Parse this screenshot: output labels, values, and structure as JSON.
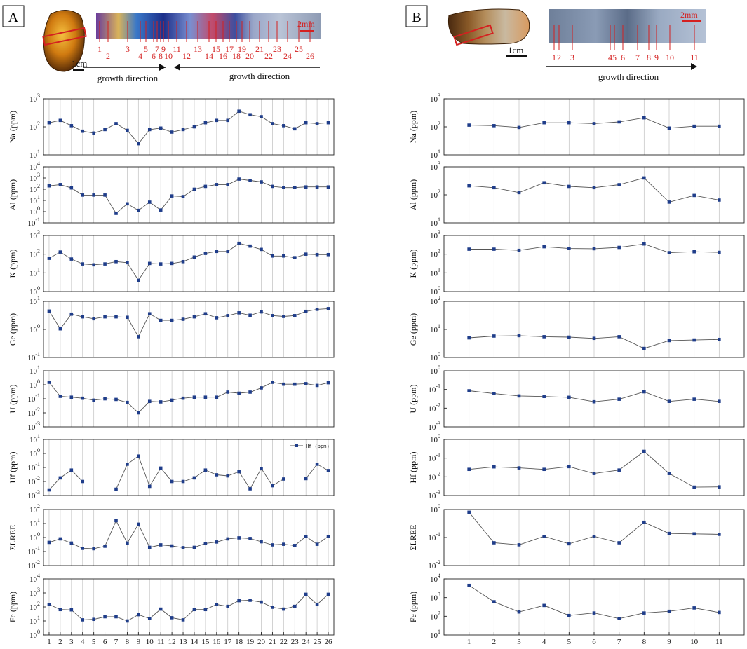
{
  "panels": [
    {
      "label": "A",
      "scale_labels": {
        "photo": "1cm",
        "strip": "2mm"
      },
      "directions": [
        {
          "label": "growth direction",
          "arrow": "right"
        },
        {
          "label": "growth direction",
          "arrow": "left"
        }
      ],
      "strip_numbers": [
        "1",
        "2",
        "3",
        "4",
        "5",
        "6",
        "7",
        "8",
        "9",
        "10",
        "11",
        "12",
        "13",
        "14",
        "15",
        "16",
        "17",
        "18",
        "19",
        "20",
        "21",
        "22",
        "23",
        "24",
        "25",
        "26"
      ]
    },
    {
      "label": "B",
      "scale_labels": {
        "photo": "1cm",
        "strip": "2mm"
      },
      "directions": [
        {
          "label": "growth direction",
          "arrow": "right"
        }
      ],
      "strip_numbers": [
        "1",
        "2",
        "3",
        "4",
        "5",
        "6",
        "7",
        "8",
        "9",
        "10",
        "11"
      ]
    }
  ],
  "colors": {
    "series": "#1f3d8a",
    "line": "#555555",
    "grid": "#c8c8c8",
    "strip_marks": "#d42020"
  },
  "chart_data": [
    {
      "panel": "A",
      "type": "line",
      "yscale": "log",
      "x": [
        1,
        2,
        3,
        4,
        5,
        6,
        7,
        8,
        9,
        10,
        11,
        12,
        13,
        14,
        15,
        16,
        17,
        18,
        19,
        20,
        21,
        22,
        23,
        24,
        25,
        26
      ],
      "rows": [
        {
          "ylabel": "Na (ppm)",
          "ylim": [
            10,
            1000
          ],
          "ticks": [
            1,
            2,
            3
          ],
          "values": [
            140,
            170,
            110,
            70,
            60,
            80,
            130,
            75,
            25,
            80,
            90,
            65,
            80,
            100,
            140,
            170,
            170,
            360,
            270,
            230,
            130,
            110,
            85,
            140,
            130,
            140
          ]
        },
        {
          "ylabel": "Al (ppm)",
          "ylim": [
            0.1,
            10000
          ],
          "ticks": [
            -1,
            0,
            1,
            2,
            3,
            4
          ],
          "values": [
            200,
            260,
            130,
            30,
            30,
            30,
            0.7,
            5,
            1.3,
            7,
            1.4,
            25,
            22,
            100,
            180,
            260,
            260,
            800,
            600,
            450,
            180,
            140,
            140,
            160,
            160,
            160
          ]
        },
        {
          "ylabel": "K (ppm)",
          "ylim": [
            1,
            1000
          ],
          "ticks": [
            0,
            1,
            2,
            3
          ],
          "values": [
            60,
            130,
            55,
            30,
            27,
            30,
            40,
            35,
            4,
            32,
            30,
            32,
            40,
            70,
            110,
            140,
            140,
            380,
            270,
            180,
            80,
            80,
            65,
            100,
            95,
            95
          ]
        },
        {
          "ylabel": "Ge (ppm)",
          "ylim": [
            0.1,
            10
          ],
          "ticks": [
            -1,
            0,
            1
          ],
          "values": [
            4.5,
            1.05,
            3.5,
            2.8,
            2.4,
            2.8,
            2.8,
            2.7,
            0.55,
            3.6,
            2.1,
            2.1,
            2.3,
            2.8,
            3.6,
            2.6,
            3.1,
            3.9,
            3.2,
            4.2,
            3.1,
            2.9,
            3.1,
            4.4,
            5.2,
            5.5
          ]
        },
        {
          "ylabel": "U (ppm)",
          "ylim": [
            0.001,
            10
          ],
          "ticks": [
            -3,
            -2,
            -1,
            0,
            1
          ],
          "values": [
            1.5,
            0.15,
            0.13,
            0.11,
            0.08,
            0.1,
            0.09,
            0.055,
            0.01,
            0.065,
            0.06,
            0.08,
            0.11,
            0.13,
            0.13,
            0.13,
            0.3,
            0.25,
            0.3,
            0.6,
            1.5,
            1.1,
            1.1,
            1.2,
            0.9,
            1.4
          ]
        },
        {
          "ylabel": "Hf (ppm)",
          "ylim": [
            0.001,
            10
          ],
          "ticks": [
            -3,
            -2,
            -1,
            0,
            1
          ],
          "legend": "Hf (ppm)",
          "values": [
            0.0025,
            0.018,
            0.065,
            0.01,
            null,
            null,
            0.0028,
            0.17,
            0.65,
            0.0045,
            0.09,
            0.01,
            0.01,
            0.018,
            0.065,
            0.03,
            0.025,
            0.05,
            0.003,
            0.085,
            0.005,
            0.015,
            null,
            0.016,
            0.17,
            0.06
          ]
        },
        {
          "ylabel": "ΣLREE",
          "ylim": [
            0.01,
            100
          ],
          "ticks": [
            -2,
            -1,
            0,
            1,
            2
          ],
          "values": [
            0.45,
            0.8,
            0.4,
            0.17,
            0.16,
            0.24,
            16,
            0.4,
            9,
            0.2,
            0.3,
            0.25,
            0.19,
            0.2,
            0.38,
            0.48,
            0.8,
            0.95,
            0.85,
            0.5,
            0.3,
            0.33,
            0.27,
            1.2,
            0.33,
            1.2
          ]
        },
        {
          "ylabel": "Fe (ppm)",
          "ylim": [
            1,
            10000
          ],
          "ticks": [
            0,
            1,
            2,
            3,
            4
          ],
          "values": [
            150,
            65,
            62,
            12,
            13,
            20,
            20,
            10,
            28,
            15,
            70,
            17,
            12,
            65,
            65,
            150,
            110,
            280,
            300,
            220,
            95,
            70,
            110,
            800,
            150,
            800
          ]
        }
      ]
    },
    {
      "panel": "B",
      "type": "line",
      "yscale": "log",
      "x": [
        1,
        2,
        3,
        4,
        5,
        6,
        7,
        8,
        9,
        10,
        11
      ],
      "rows": [
        {
          "ylabel": "Na (ppm)",
          "ylim": [
            10,
            1000
          ],
          "ticks": [
            1,
            2,
            3
          ],
          "values": [
            115,
            110,
            95,
            140,
            140,
            130,
            150,
            210,
            90,
            105,
            105
          ]
        },
        {
          "ylabel": "Al (ppm)",
          "ylim": [
            10,
            1000
          ],
          "ticks": [
            1,
            2,
            3
          ],
          "values": [
            210,
            180,
            120,
            270,
            200,
            180,
            230,
            400,
            55,
            95,
            65
          ]
        },
        {
          "ylabel": "K (ppm)",
          "ylim": [
            1,
            1000
          ],
          "ticks": [
            0,
            1,
            2,
            3
          ],
          "values": [
            185,
            185,
            160,
            250,
            200,
            195,
            230,
            350,
            120,
            135,
            125
          ]
        },
        {
          "ylabel": "Ge (ppm)",
          "ylim": [
            1,
            100
          ],
          "ticks": [
            0,
            1,
            2
          ],
          "values": [
            5,
            5.8,
            6,
            5.5,
            5.3,
            4.8,
            5.5,
            2.1,
            4,
            4.2,
            4.4
          ]
        },
        {
          "ylabel": "U (ppm)",
          "ylim": [
            0.001,
            1
          ],
          "ticks": [
            -3,
            -2,
            -1,
            0
          ],
          "values": [
            0.085,
            0.06,
            0.045,
            0.042,
            0.038,
            0.022,
            0.03,
            0.075,
            0.023,
            0.03,
            0.023
          ]
        },
        {
          "ylabel": "Hf (ppm)",
          "ylim": [
            0.001,
            1
          ],
          "ticks": [
            -3,
            -2,
            -1,
            0
          ],
          "values": [
            0.025,
            0.034,
            0.03,
            0.025,
            0.035,
            0.015,
            0.023,
            0.23,
            0.015,
            0.0028,
            0.0029
          ]
        },
        {
          "ylabel": "ΣLREE",
          "ylim": [
            0.01,
            1
          ],
          "ticks": [
            -2,
            -1,
            0
          ],
          "values": [
            0.8,
            0.065,
            0.055,
            0.11,
            0.06,
            0.11,
            0.065,
            0.35,
            0.14,
            0.135,
            0.13
          ]
        },
        {
          "ylabel": "Fe (ppm)",
          "ylim": [
            10,
            10000
          ],
          "ticks": [
            1,
            2,
            3,
            4
          ],
          "values": [
            4500,
            600,
            170,
            380,
            110,
            150,
            75,
            150,
            185,
            280,
            160
          ]
        }
      ]
    }
  ]
}
